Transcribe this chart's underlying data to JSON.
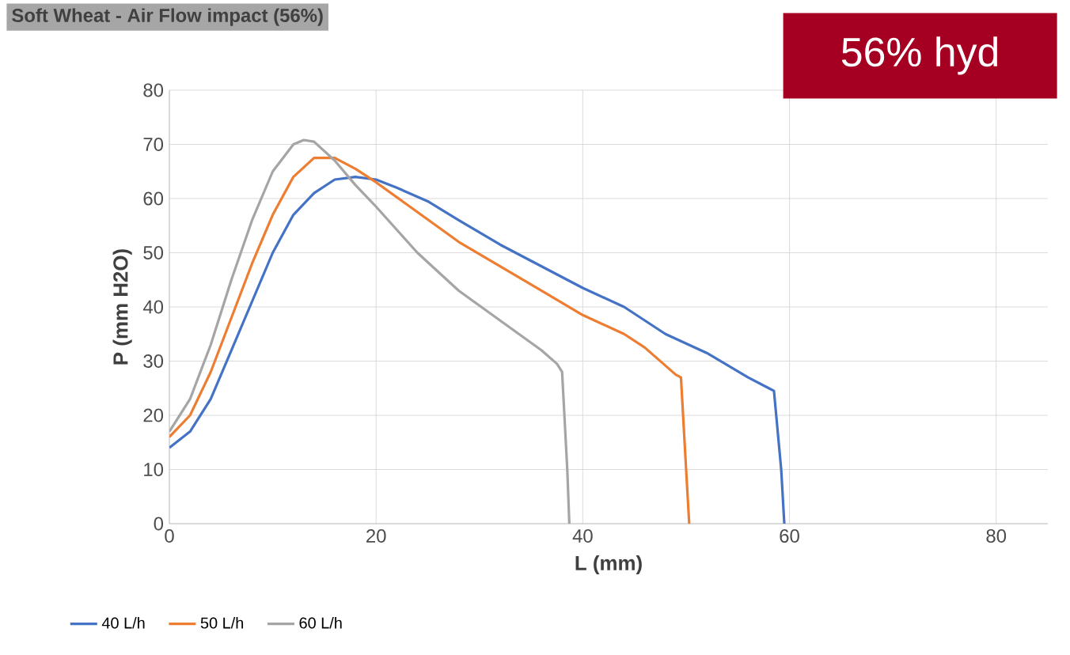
{
  "chart_data": {
    "type": "line",
    "title": "Soft Wheat - Air Flow impact (56%)",
    "annotations": [
      "56% hyd"
    ],
    "xlabel": "L (mm)",
    "ylabel": "P (mm H2O)",
    "xlim": [
      0,
      85
    ],
    "ylim": [
      0,
      80
    ],
    "xticks": [
      0,
      20,
      40,
      60,
      80
    ],
    "yticks": [
      0,
      10,
      20,
      30,
      40,
      50,
      60,
      70,
      80
    ],
    "grid": true,
    "legend": "bottom",
    "marker": "none",
    "line_style": "solid",
    "series": [
      {
        "name": "40 L/h",
        "color": "#4472c4",
        "x": [
          0,
          2,
          4,
          6,
          8,
          10,
          12,
          14,
          16,
          18,
          20,
          22,
          25,
          28,
          32,
          36,
          40,
          44,
          48,
          52,
          56,
          58,
          58.5,
          59.2,
          59.5
        ],
        "values": [
          14,
          17,
          23,
          32,
          41,
          50,
          57,
          61,
          63.5,
          64,
          63.5,
          62,
          59.5,
          56,
          51.5,
          47.5,
          43.5,
          40,
          35,
          31.5,
          27,
          25,
          24.5,
          10,
          0
        ]
      },
      {
        "name": "50 L/h",
        "color": "#ed7d31",
        "x": [
          0,
          2,
          4,
          6,
          8,
          10,
          12,
          14,
          16,
          18,
          20,
          24,
          28,
          32,
          36,
          40,
          44,
          46,
          49,
          49.5,
          50,
          50.3
        ],
        "values": [
          16,
          20,
          28,
          38,
          48,
          57,
          64,
          67.5,
          67.5,
          65.5,
          63,
          57.5,
          52,
          47.5,
          43,
          38.5,
          35,
          32.5,
          27.5,
          27,
          10,
          0
        ]
      },
      {
        "name": "60 L/h",
        "color": "#a5a5a5",
        "x": [
          0,
          2,
          4,
          6,
          8,
          10,
          12,
          13,
          14,
          16,
          18,
          20,
          24,
          28,
          32,
          36,
          37.5,
          38,
          38.5,
          38.7
        ],
        "values": [
          17,
          23,
          33,
          45,
          56,
          65,
          70,
          70.8,
          70.5,
          67,
          62.5,
          58.5,
          50,
          43,
          37.5,
          32,
          29.5,
          28,
          10,
          0
        ]
      }
    ]
  }
}
